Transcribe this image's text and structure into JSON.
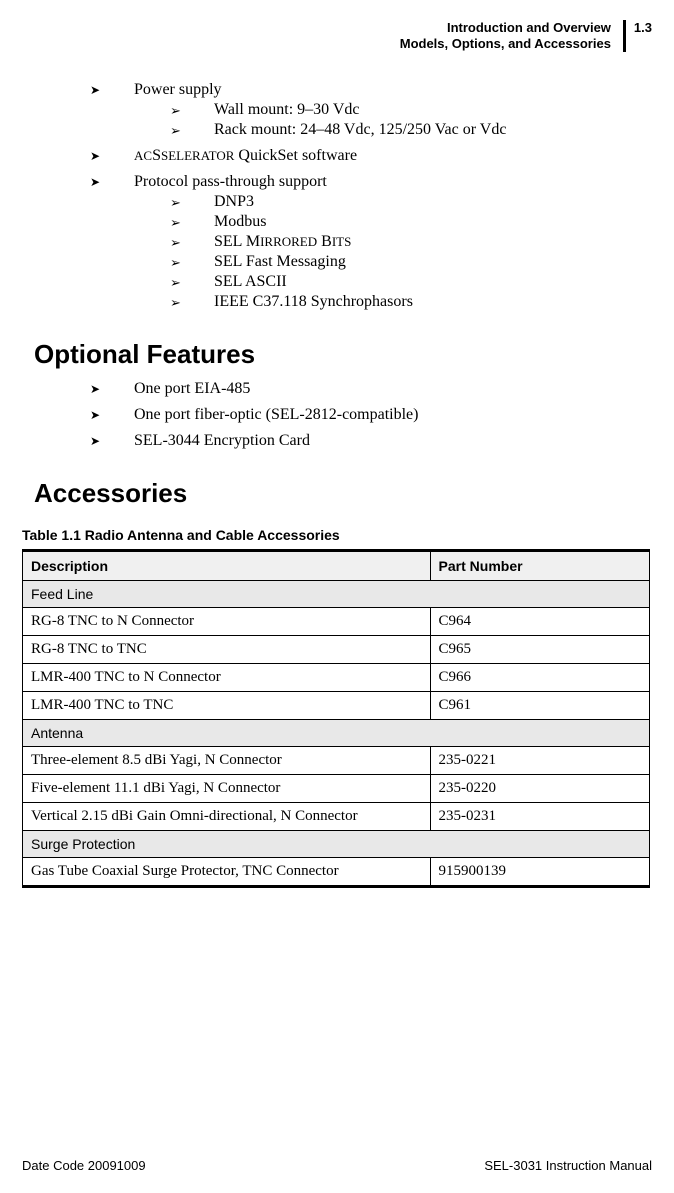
{
  "header": {
    "line1": "Introduction and Overview",
    "line2": "Models, Options, and Accessories",
    "pageNum": "1.3"
  },
  "list1": {
    "item1": {
      "label": "Power supply",
      "sub1": "Wall mount: 9–30 Vdc",
      "sub2": "Rack mount: 24–48 Vdc, 125/250 Vac or Vdc"
    },
    "item2_pre": "AC",
    "item2_caps": "SELERATOR",
    "item2_post": " QuickSet software",
    "item3": {
      "label": "Protocol pass-through support",
      "sub1": "DNP3",
      "sub2": "Modbus",
      "sub3_pre": "SEL M",
      "sub3_caps": "IRRORED",
      "sub3_mid": " B",
      "sub3_caps2": "ITS",
      "sub4": "SEL Fast Messaging",
      "sub5": "SEL ASCII",
      "sub6": "IEEE C37.118 Synchrophasors"
    }
  },
  "optionalHeading": "Optional Features",
  "optional": {
    "i1": "One port EIA-485",
    "i2": "One port fiber-optic (SEL-2812-compatible)",
    "i3": "SEL-3044 Encryption Card"
  },
  "accessoriesHeading": "Accessories",
  "tableCaption": "Table 1.1    Radio Antenna and Cable Accessories",
  "table": {
    "h1": "Description",
    "h2": "Part Number",
    "s1": "Feed Line",
    "r1d": "RG-8 TNC to N Connector",
    "r1p": "C964",
    "r2d": "RG-8 TNC to TNC",
    "r2p": "C965",
    "r3d": "LMR-400 TNC to N Connector",
    "r3p": "C966",
    "r4d": "LMR-400 TNC to TNC",
    "r4p": "C961",
    "s2": "Antenna",
    "r5d": "Three-element 8.5 dBi Yagi, N Connector",
    "r5p": "235-0221",
    "r6d": "Five-element 11.1 dBi Yagi, N Connector",
    "r6p": "235-0220",
    "r7d": "Vertical 2.15 dBi Gain Omni-directional, N Connector",
    "r7p": "235-0231",
    "s3": "Surge Protection",
    "r8d": "Gas Tube Coaxial Surge Protector, TNC Connector",
    "r8p": "915900139"
  },
  "footer": {
    "left": "Date Code 20091009",
    "right": "SEL-3031 Instruction Manual"
  }
}
